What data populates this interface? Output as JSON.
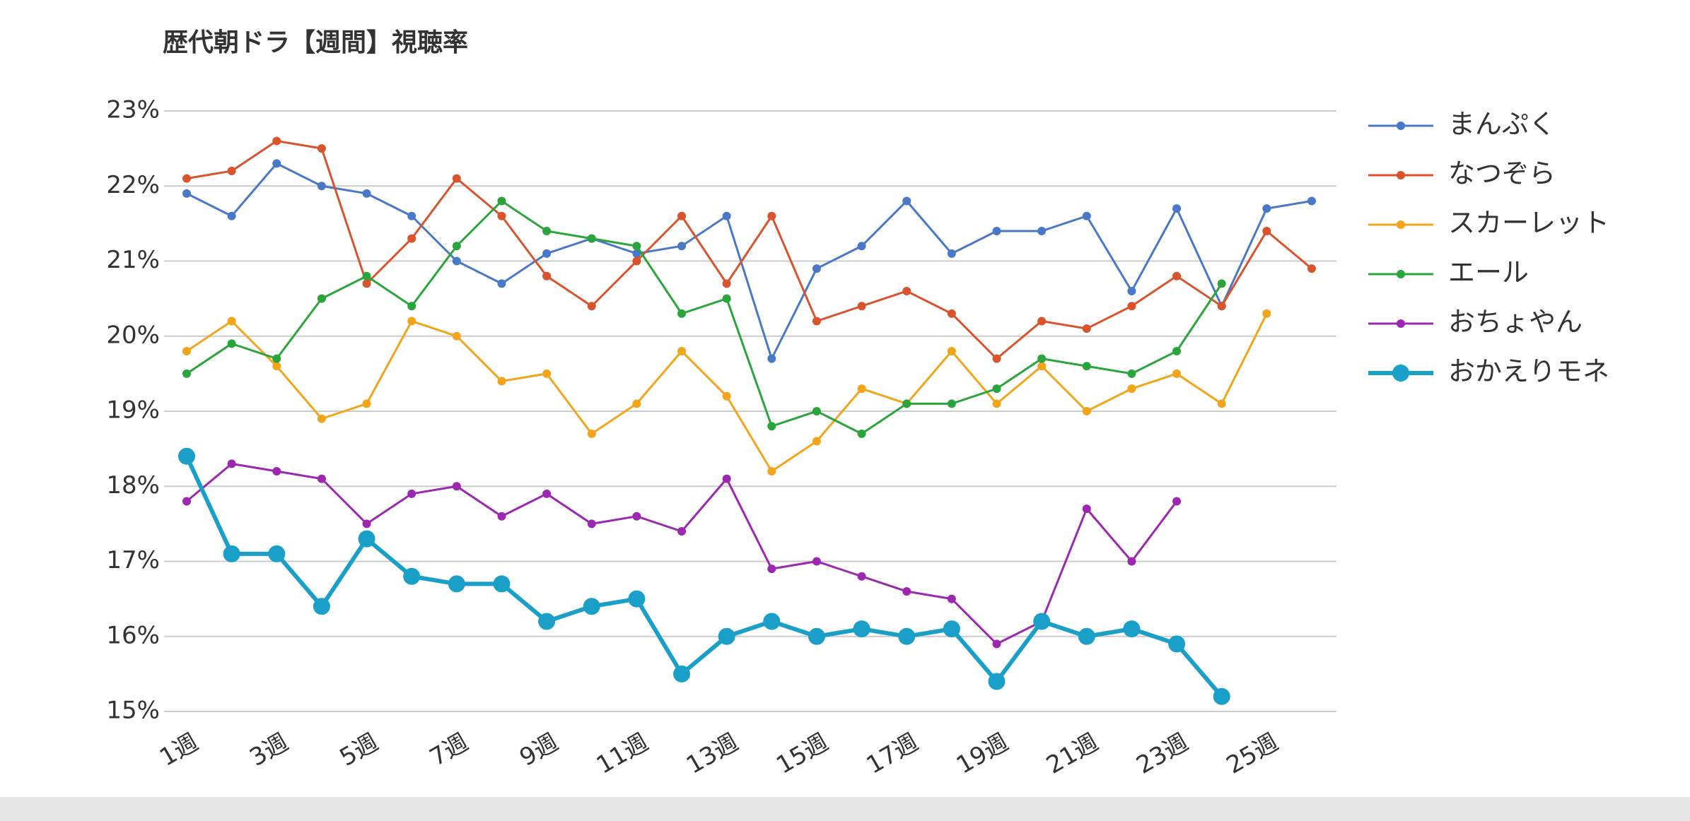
{
  "chart_data": {
    "type": "line",
    "title": "歴代朝ドラ【週間】視聴率",
    "categories": [
      "1週",
      null,
      "3週",
      null,
      "5週",
      null,
      "7週",
      null,
      "9週",
      null,
      "11週",
      null,
      "13週",
      null,
      "15週",
      null,
      "17週",
      null,
      "19週",
      null,
      "21週",
      null,
      "23週",
      null,
      "25週",
      null
    ],
    "ylim": [
      15,
      23
    ],
    "yticks": [
      {
        "value": 15,
        "label": "15%"
      },
      {
        "value": 16,
        "label": "16%"
      },
      {
        "value": 17,
        "label": "17%"
      },
      {
        "value": 18,
        "label": "18%"
      },
      {
        "value": 19,
        "label": "19%"
      },
      {
        "value": 20,
        "label": "20%"
      },
      {
        "value": 21,
        "label": "21%"
      },
      {
        "value": 22,
        "label": "22%"
      },
      {
        "value": 23,
        "label": "23%"
      }
    ],
    "grid": true,
    "legend": "right",
    "series": [
      {
        "name": "まんぷく",
        "color": "#4a78c8",
        "values": [
          21.9,
          21.6,
          22.3,
          22.0,
          21.9,
          21.6,
          21.0,
          20.7,
          21.1,
          21.3,
          21.1,
          21.2,
          21.6,
          19.7,
          20.9,
          21.2,
          21.8,
          21.1,
          21.4,
          21.4,
          21.6,
          20.6,
          21.7,
          20.4,
          21.7,
          21.8
        ]
      },
      {
        "name": "なつぞら",
        "color": "#d9532c",
        "values": [
          22.1,
          22.2,
          22.6,
          22.5,
          20.7,
          21.3,
          22.1,
          21.6,
          20.8,
          20.4,
          21.0,
          21.6,
          20.7,
          21.6,
          20.2,
          20.4,
          20.6,
          20.3,
          19.7,
          20.2,
          20.1,
          20.4,
          20.8,
          20.4,
          21.4,
          20.9
        ]
      },
      {
        "name": "スカーレット",
        "color": "#f2a51a",
        "values": [
          19.8,
          20.2,
          19.6,
          18.9,
          19.1,
          20.2,
          20.0,
          19.4,
          19.5,
          18.7,
          19.1,
          19.8,
          19.2,
          18.2,
          18.6,
          19.3,
          19.1,
          19.8,
          19.1,
          19.6,
          19.0,
          19.3,
          19.5,
          19.1,
          20.3,
          null
        ]
      },
      {
        "name": "エール",
        "color": "#2aa53c",
        "values": [
          19.5,
          19.9,
          19.7,
          20.5,
          20.8,
          20.4,
          21.2,
          21.8,
          21.4,
          21.3,
          21.2,
          20.3,
          20.5,
          18.8,
          19.0,
          18.7,
          19.1,
          19.1,
          19.3,
          19.7,
          19.6,
          19.5,
          19.8,
          20.7,
          null,
          null
        ]
      },
      {
        "name": "おちょやん",
        "color": "#9c27b0",
        "values": [
          17.8,
          18.3,
          18.2,
          18.1,
          17.5,
          17.9,
          18.0,
          17.6,
          17.9,
          17.5,
          17.6,
          17.4,
          18.1,
          16.9,
          17.0,
          16.8,
          16.6,
          16.5,
          15.9,
          16.2,
          17.7,
          17.0,
          17.8,
          null,
          null,
          null
        ]
      },
      {
        "name": "おかえりモネ",
        "color": "#1aa0c8",
        "values": [
          18.4,
          17.1,
          17.1,
          16.4,
          17.3,
          16.8,
          16.7,
          16.7,
          16.2,
          16.4,
          16.5,
          15.5,
          16.0,
          16.2,
          16.0,
          16.1,
          16.0,
          16.1,
          15.4,
          16.2,
          16.0,
          16.1,
          15.9,
          15.2,
          null,
          null
        ]
      }
    ]
  }
}
